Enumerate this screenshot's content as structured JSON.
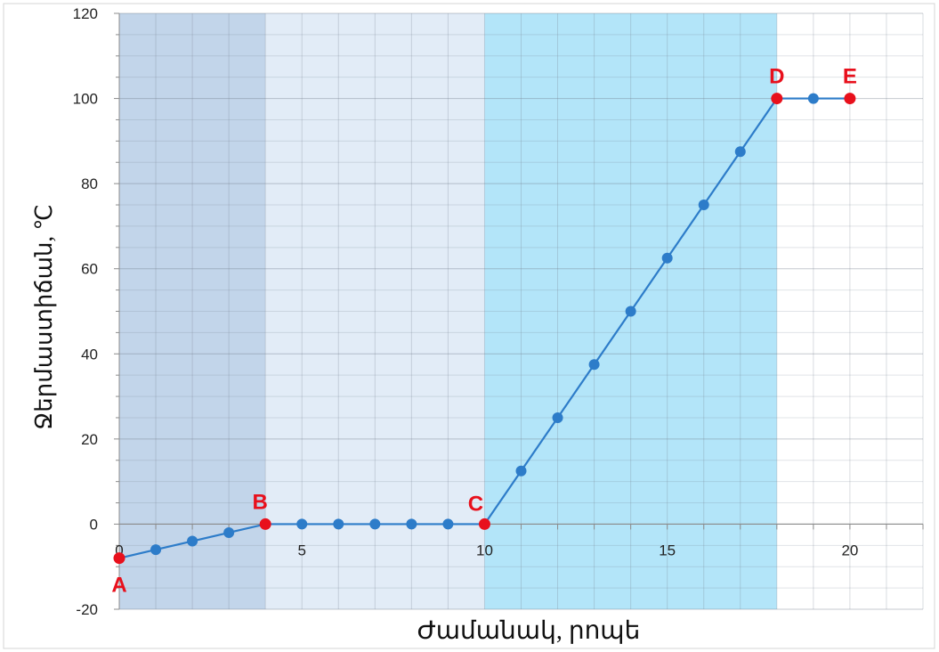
{
  "chart_data": {
    "type": "line",
    "xlabel": "Ժամանակ, րոպե",
    "ylabel": "Ջերմաստիճան, ℃",
    "xlim": [
      0,
      22
    ],
    "ylim": [
      -20,
      120
    ],
    "x_ticks": [
      0,
      5,
      10,
      15,
      20
    ],
    "y_ticks": [
      -20,
      0,
      20,
      40,
      60,
      80,
      100,
      120
    ],
    "grid": true,
    "shaded_regions": [
      {
        "x_range": [
          0,
          4
        ],
        "color": "#c2d5ea"
      },
      {
        "x_range": [
          4,
          10
        ],
        "color": "#e2ecf7"
      },
      {
        "x_range": [
          10,
          18
        ],
        "color": "#b3e5f9"
      }
    ],
    "series": [
      {
        "color": "#2d7cc9",
        "points": [
          {
            "x": 0,
            "y": -8,
            "label": "A"
          },
          {
            "x": 1,
            "y": -6
          },
          {
            "x": 2,
            "y": -4
          },
          {
            "x": 3,
            "y": -2
          },
          {
            "x": 4,
            "y": 0,
            "label": "B"
          },
          {
            "x": 5,
            "y": 0
          },
          {
            "x": 6,
            "y": 0
          },
          {
            "x": 7,
            "y": 0
          },
          {
            "x": 8,
            "y": 0
          },
          {
            "x": 9,
            "y": 0
          },
          {
            "x": 10,
            "y": 0,
            "label": "C"
          },
          {
            "x": 11,
            "y": 12.5
          },
          {
            "x": 12,
            "y": 25
          },
          {
            "x": 13,
            "y": 37.5
          },
          {
            "x": 14,
            "y": 50
          },
          {
            "x": 15,
            "y": 62.5
          },
          {
            "x": 16,
            "y": 75
          },
          {
            "x": 17,
            "y": 87.5
          },
          {
            "x": 18,
            "y": 100,
            "label": "D"
          },
          {
            "x": 19,
            "y": 100
          },
          {
            "x": 20,
            "y": 100,
            "label": "E"
          }
        ]
      }
    ],
    "highlight_color": "#e8101c"
  }
}
